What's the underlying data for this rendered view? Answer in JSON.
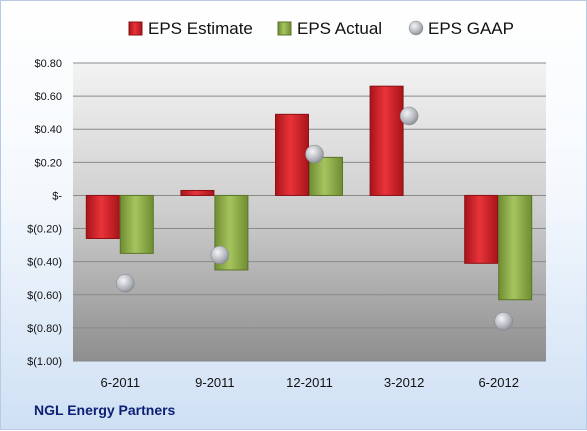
{
  "chart_data": {
    "type": "bar",
    "categories": [
      "6-2011",
      "9-2011",
      "12-2011",
      "3-2012",
      "6-2012"
    ],
    "series": [
      {
        "name": "EPS Estimate",
        "kind": "bar",
        "color": "#d9262b",
        "values": [
          -0.26,
          0.03,
          0.49,
          0.66,
          -0.41
        ]
      },
      {
        "name": "EPS Actual",
        "kind": "bar",
        "color": "#8fae4a",
        "values": [
          -0.35,
          -0.45,
          0.23,
          null,
          -0.63
        ]
      },
      {
        "name": "EPS GAAP",
        "kind": "marker",
        "color": "#b9bcc2",
        "values": [
          -0.53,
          -0.36,
          0.25,
          0.48,
          -0.76
        ]
      }
    ],
    "ylim": [
      -1.0,
      0.8
    ],
    "yticks": [
      0.8,
      0.6,
      0.4,
      0.2,
      0,
      -0.2,
      -0.4,
      -0.6,
      -0.8,
      -1.0
    ],
    "ytick_labels": [
      "$0.80",
      "$0.60",
      "$0.40",
      "$0.20",
      "$-",
      "$(0.20)",
      "$(0.40)",
      "$(0.60)",
      "$(0.80)",
      "$(1.00)"
    ],
    "grid": true,
    "legend_position": "top"
  },
  "footer": {
    "company": "NGL Energy Partners"
  }
}
